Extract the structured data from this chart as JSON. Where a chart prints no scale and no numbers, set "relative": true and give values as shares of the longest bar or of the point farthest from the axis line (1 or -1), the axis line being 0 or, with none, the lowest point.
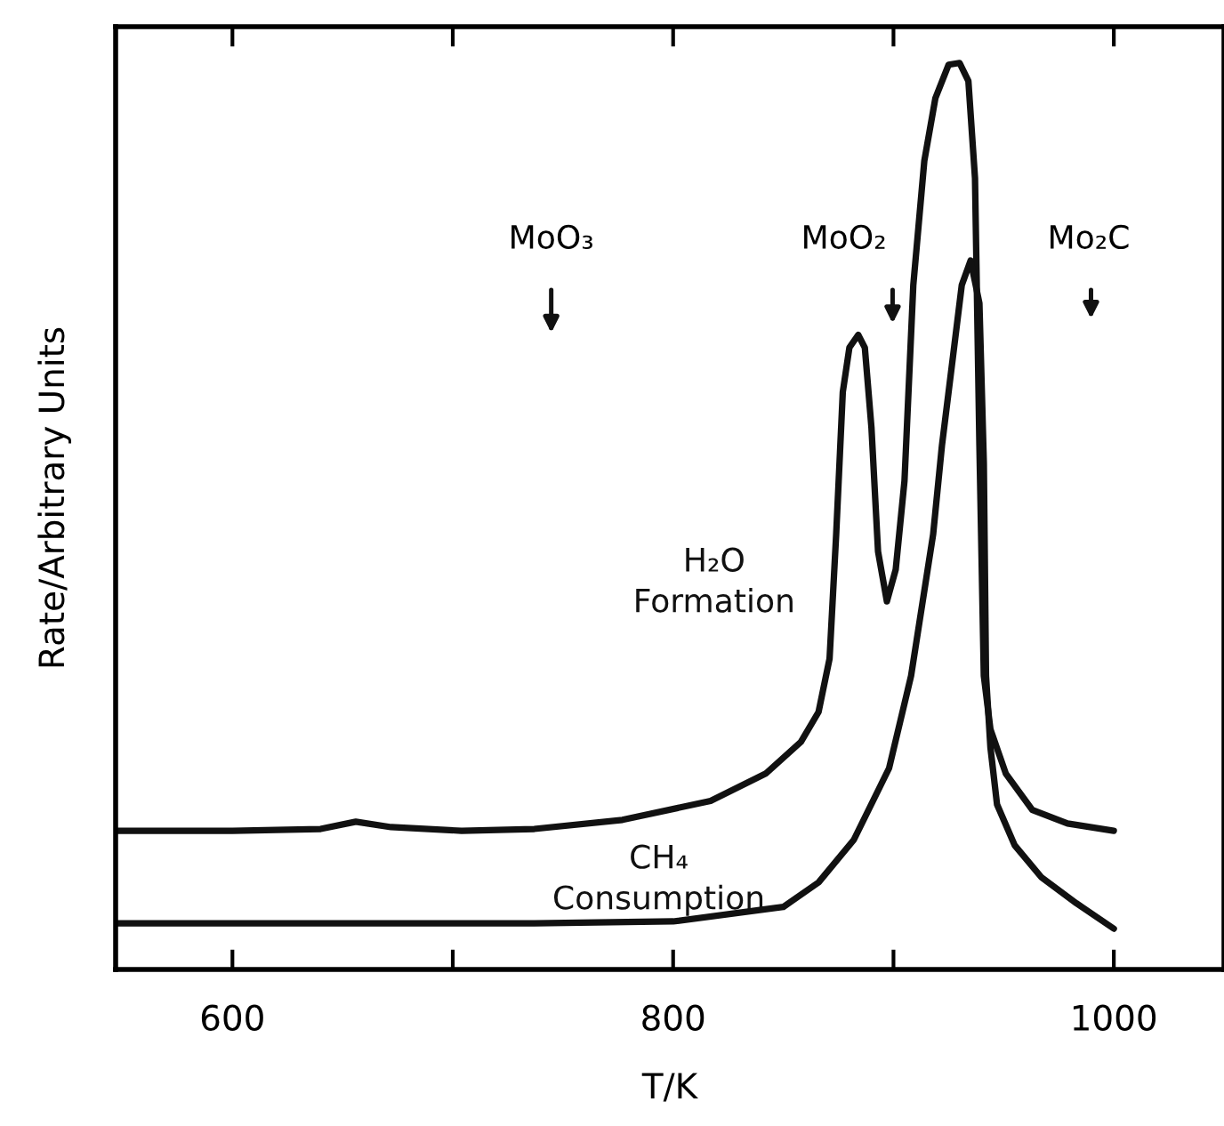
{
  "chart_data": {
    "type": "line",
    "relative": true,
    "xlabel": "T/K",
    "ylabel": "Rate/Arbitrary Units",
    "xlim": [
      547,
      1050
    ],
    "xticks": [
      600,
      {
        "value": 700,
        "label": null
      },
      800,
      {
        "value": 900,
        "label": null
      },
      1000
    ],
    "grid": false,
    "legend": false,
    "marker": "none",
    "line_style": "solid",
    "series": [
      {
        "name": "H₂O\nFormation",
        "color": "#111111",
        "x": [
          547,
          600,
          640,
          656,
          672,
          704,
          737,
          777,
          817,
          842,
          858,
          866,
          871,
          874,
          877,
          880,
          884,
          887,
          890,
          893,
          897,
          901,
          905,
          909,
          914,
          919,
          925,
          930,
          934,
          937,
          939,
          941,
          944,
          951,
          963,
          979,
          1000
        ],
        "values": [
          0.153,
          0.153,
          0.155,
          0.163,
          0.157,
          0.153,
          0.155,
          0.165,
          0.186,
          0.216,
          0.251,
          0.284,
          0.343,
          0.48,
          0.637,
          0.686,
          0.7,
          0.686,
          0.598,
          0.461,
          0.406,
          0.441,
          0.539,
          0.755,
          0.892,
          0.961,
          0.998,
          1.0,
          0.98,
          0.873,
          0.578,
          0.324,
          0.265,
          0.216,
          0.176,
          0.161,
          0.153
        ]
      },
      {
        "name": "CH₄\nConsumption",
        "color": "#111111",
        "x": [
          547,
          600,
          737,
          800,
          850,
          866,
          882,
          898,
          908,
          918,
          922,
          927,
          931,
          935,
          939,
          941,
          942,
          944,
          947,
          955,
          967,
          983,
          1000
        ],
        "values": [
          0.051,
          0.051,
          0.051,
          0.053,
          0.069,
          0.096,
          0.143,
          0.222,
          0.324,
          0.48,
          0.578,
          0.676,
          0.755,
          0.782,
          0.735,
          0.559,
          0.324,
          0.245,
          0.182,
          0.137,
          0.102,
          0.073,
          0.045
        ]
      }
    ],
    "annotations": [
      "MoO₃",
      "MoO₂",
      "Mo₂C"
    ]
  }
}
